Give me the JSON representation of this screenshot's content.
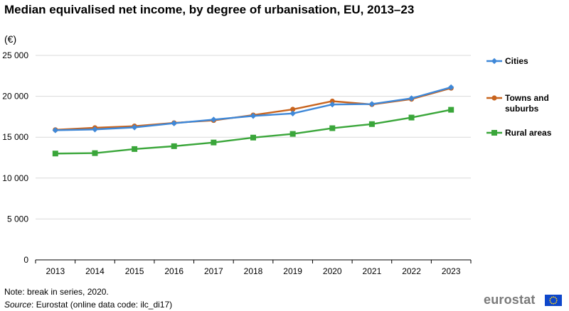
{
  "header": {
    "title": "Median equivalised net income, by degree of urbanisation, EU, 2013–23",
    "unit": "(€)"
  },
  "chart_data": {
    "type": "line",
    "title": "Median equivalised net income, by degree of urbanisation, EU, 2013–23",
    "xlabel": "",
    "ylabel": "(€)",
    "ylim": [
      0,
      25000
    ],
    "yticks": [
      0,
      5000,
      10000,
      15000,
      20000,
      25000
    ],
    "ytick_labels": [
      "0",
      "5 000",
      "10 000",
      "15 000",
      "20 000",
      "25 000"
    ],
    "categories": [
      "2013",
      "2014",
      "2015",
      "2016",
      "2017",
      "2018",
      "2019",
      "2020",
      "2021",
      "2022",
      "2023"
    ],
    "grid": true,
    "legend_position": "right",
    "series": [
      {
        "name": "Cities",
        "legend_label": "Cities",
        "color": "#3f88d8",
        "marker": "diamond",
        "values": [
          15850,
          15950,
          16200,
          16700,
          17150,
          17600,
          17900,
          19000,
          19050,
          19750,
          21100
        ]
      },
      {
        "name": "Towns and suburbs",
        "legend_label": "Towns and suburbs",
        "color": "#c8641e",
        "marker": "circle",
        "values": [
          15900,
          16150,
          16350,
          16750,
          17050,
          17700,
          18400,
          19400,
          19000,
          19650,
          21000
        ]
      },
      {
        "name": "Rural areas",
        "legend_label": "Rural areas",
        "color": "#3aa63a",
        "marker": "square",
        "values": [
          13000,
          13050,
          13550,
          13900,
          14350,
          14950,
          15400,
          16100,
          16600,
          17400,
          18350
        ]
      }
    ]
  },
  "footer": {
    "note": "Note: break in series, 2020.",
    "source_label": "Source",
    "source_text": ": Eurostat (online data code: ilc_di17)",
    "logo_text": "eurostat"
  }
}
